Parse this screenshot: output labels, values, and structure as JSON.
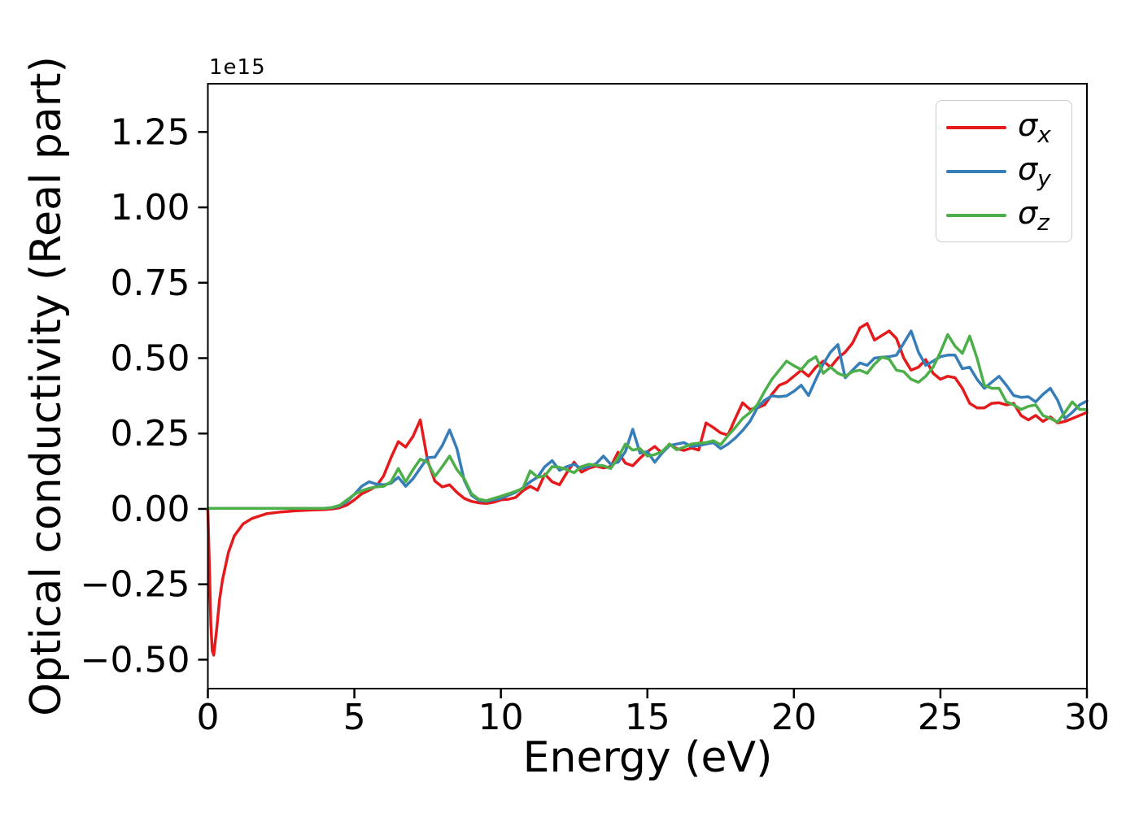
{
  "figure": {
    "background": "#ffffff",
    "axes_edge_color": "#000000"
  },
  "chart_data": {
    "type": "line",
    "title": "",
    "xlabel": "Energy (eV)",
    "ylabel": "Optical conductivity (Real part)",
    "y_offset_text": "1e15",
    "grid": false,
    "legend_position": "upper right",
    "xlim": [
      0,
      30
    ],
    "ylim": [
      -0.596,
      1.41
    ],
    "xticks": {
      "values": [
        0,
        5,
        10,
        15,
        20,
        25,
        30
      ],
      "labels": [
        "0",
        "5",
        "10",
        "15",
        "20",
        "25",
        "30"
      ]
    },
    "yticks": {
      "values": [
        -0.5,
        -0.25,
        0.0,
        0.25,
        0.5,
        0.75,
        1.0,
        1.25
      ],
      "labels": [
        "−0.50",
        "−0.25",
        "0.00",
        "0.25",
        "0.50",
        "0.75",
        "1.00",
        "1.25"
      ]
    },
    "x": [
      0,
      0.05,
      0.1,
      0.15,
      0.2,
      0.3,
      0.4,
      0.5,
      0.7,
      0.9,
      1.2,
      1.5,
      2,
      2.5,
      3,
      3.5,
      4,
      4.25,
      4.5,
      4.75,
      5,
      5.25,
      5.5,
      5.75,
      6,
      6.25,
      6.5,
      6.75,
      7,
      7.25,
      7.5,
      7.75,
      8,
      8.25,
      8.5,
      8.75,
      9,
      9.25,
      9.5,
      9.75,
      10,
      10.25,
      10.5,
      10.75,
      11,
      11.25,
      11.5,
      11.75,
      12,
      12.25,
      12.5,
      12.75,
      13,
      13.25,
      13.5,
      13.75,
      14,
      14.25,
      14.5,
      14.75,
      15,
      15.25,
      15.5,
      15.75,
      16,
      16.25,
      16.5,
      16.75,
      17,
      17.25,
      17.5,
      17.75,
      18,
      18.25,
      18.5,
      18.75,
      19,
      19.25,
      19.5,
      19.75,
      20,
      20.25,
      20.5,
      20.75,
      21,
      21.25,
      21.5,
      21.75,
      22,
      22.25,
      22.5,
      22.75,
      23,
      23.25,
      23.5,
      23.75,
      24,
      24.25,
      24.5,
      24.75,
      25,
      25.25,
      25.5,
      25.75,
      26,
      26.25,
      26.5,
      26.75,
      27,
      27.25,
      27.5,
      27.75,
      28,
      28.25,
      28.5,
      28.75,
      29,
      29.25,
      29.5,
      29.75,
      30
    ],
    "series": [
      {
        "name": "sigma_x",
        "legend_base": "σ",
        "legend_sub": "x",
        "color": "#e41a1c",
        "values": [
          -0.005,
          -0.18,
          -0.38,
          -0.47,
          -0.485,
          -0.4,
          -0.3,
          -0.235,
          -0.145,
          -0.09,
          -0.05,
          -0.032,
          -0.016,
          -0.01,
          -0.006,
          -0.004,
          -0.002,
          0,
          0.004,
          0.013,
          0.03,
          0.05,
          0.062,
          0.075,
          0.11,
          0.17,
          0.223,
          0.205,
          0.24,
          0.295,
          0.16,
          0.092,
          0.073,
          0.08,
          0.055,
          0.035,
          0.025,
          0.02,
          0.018,
          0.022,
          0.03,
          0.032,
          0.038,
          0.06,
          0.075,
          0.062,
          0.115,
          0.09,
          0.08,
          0.12,
          0.155,
          0.122,
          0.135,
          0.142,
          0.136,
          0.14,
          0.188,
          0.152,
          0.143,
          0.168,
          0.19,
          0.207,
          0.185,
          0.215,
          0.2,
          0.194,
          0.202,
          0.195,
          0.285,
          0.27,
          0.252,
          0.245,
          0.3,
          0.352,
          0.33,
          0.335,
          0.345,
          0.38,
          0.41,
          0.42,
          0.44,
          0.46,
          0.44,
          0.47,
          0.49,
          0.47,
          0.5,
          0.52,
          0.55,
          0.6,
          0.615,
          0.56,
          0.575,
          0.59,
          0.565,
          0.5,
          0.46,
          0.47,
          0.495,
          0.45,
          0.43,
          0.44,
          0.435,
          0.4,
          0.35,
          0.335,
          0.335,
          0.35,
          0.352,
          0.345,
          0.35,
          0.31,
          0.295,
          0.31,
          0.29,
          0.305,
          0.285,
          0.29,
          0.3,
          0.31,
          0.32
        ]
      },
      {
        "name": "sigma_y",
        "legend_base": "σ",
        "legend_sub": "y",
        "color": "#377eb8",
        "values": [
          0.002,
          0.002,
          0.002,
          0.002,
          0.002,
          0.002,
          0.002,
          0.002,
          0.002,
          0.002,
          0.002,
          0.002,
          0.002,
          0.002,
          0.002,
          0.002,
          0.002,
          0.004,
          0.01,
          0.025,
          0.048,
          0.075,
          0.09,
          0.082,
          0.08,
          0.085,
          0.105,
          0.075,
          0.1,
          0.135,
          0.17,
          0.172,
          0.21,
          0.262,
          0.2,
          0.095,
          0.045,
          0.028,
          0.025,
          0.03,
          0.035,
          0.045,
          0.055,
          0.07,
          0.09,
          0.105,
          0.14,
          0.16,
          0.128,
          0.14,
          0.148,
          0.134,
          0.14,
          0.15,
          0.175,
          0.148,
          0.155,
          0.19,
          0.264,
          0.185,
          0.19,
          0.155,
          0.185,
          0.21,
          0.215,
          0.22,
          0.207,
          0.21,
          0.215,
          0.22,
          0.2,
          0.215,
          0.235,
          0.26,
          0.29,
          0.335,
          0.36,
          0.375,
          0.372,
          0.375,
          0.39,
          0.41,
          0.376,
          0.43,
          0.48,
          0.52,
          0.545,
          0.435,
          0.46,
          0.484,
          0.476,
          0.5,
          0.503,
          0.505,
          0.51,
          0.55,
          0.59,
          0.52,
          0.476,
          0.49,
          0.505,
          0.51,
          0.51,
          0.465,
          0.47,
          0.43,
          0.4,
          0.42,
          0.44,
          0.41,
          0.376,
          0.37,
          0.372,
          0.355,
          0.38,
          0.4,
          0.36,
          0.3,
          0.32,
          0.345,
          0.358
        ]
      },
      {
        "name": "sigma_z",
        "legend_base": "σ",
        "legend_sub": "z",
        "color": "#4daf4a",
        "values": [
          0.002,
          0.002,
          0.002,
          0.002,
          0.002,
          0.002,
          0.002,
          0.002,
          0.002,
          0.002,
          0.002,
          0.002,
          0.002,
          0.002,
          0.002,
          0.002,
          0.002,
          0.005,
          0.012,
          0.03,
          0.048,
          0.06,
          0.068,
          0.073,
          0.075,
          0.09,
          0.134,
          0.09,
          0.13,
          0.165,
          0.155,
          0.108,
          0.14,
          0.175,
          0.13,
          0.1,
          0.05,
          0.032,
          0.027,
          0.035,
          0.042,
          0.05,
          0.058,
          0.068,
          0.126,
          0.105,
          0.11,
          0.14,
          0.138,
          0.13,
          0.12,
          0.14,
          0.148,
          0.145,
          0.143,
          0.134,
          0.17,
          0.215,
          0.195,
          0.2,
          0.175,
          0.18,
          0.19,
          0.215,
          0.196,
          0.205,
          0.215,
          0.218,
          0.22,
          0.226,
          0.213,
          0.243,
          0.27,
          0.3,
          0.32,
          0.345,
          0.39,
          0.43,
          0.46,
          0.49,
          0.475,
          0.462,
          0.49,
          0.505,
          0.45,
          0.47,
          0.45,
          0.44,
          0.455,
          0.46,
          0.45,
          0.48,
          0.503,
          0.497,
          0.46,
          0.455,
          0.43,
          0.42,
          0.44,
          0.47,
          0.52,
          0.578,
          0.54,
          0.516,
          0.573,
          0.5,
          0.41,
          0.4,
          0.4,
          0.355,
          0.345,
          0.33,
          0.34,
          0.345,
          0.31,
          0.3,
          0.288,
          0.32,
          0.355,
          0.33,
          0.33
        ]
      }
    ]
  }
}
